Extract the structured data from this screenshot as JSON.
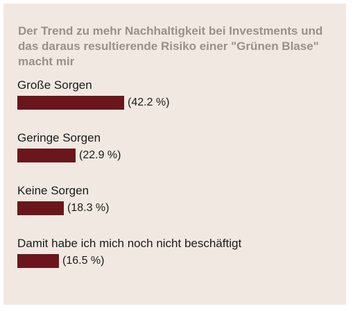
{
  "chart_data": {
    "type": "bar",
    "orientation": "horizontal",
    "title": "Der Trend zu mehr Nachhaltigkeit bei Investments und das daraus resultierende Risiko einer \"Grünen Blase\" macht mir",
    "categories": [
      "Große Sorgen",
      "Geringe Sorgen",
      "Keine Sorgen",
      "Damit habe ich mich noch nicht beschäftigt"
    ],
    "values": [
      42.2,
      22.9,
      18.3,
      16.5
    ],
    "value_labels": [
      "(42.2 %)",
      "(22.9 %)",
      "(18.3 %)",
      "(16.5 %)"
    ],
    "unit": "%",
    "bar_color": "#6b161c",
    "background_color": "#f1e9e1",
    "title_color": "#9a9089",
    "grid": false,
    "legend": "none"
  }
}
